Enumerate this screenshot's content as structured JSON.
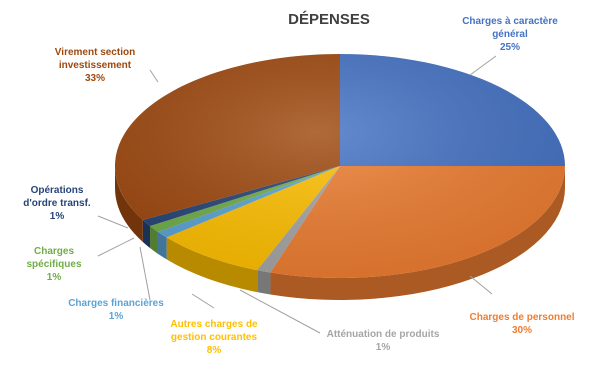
{
  "chart_data": {
    "type": "pie",
    "title": "DÉPENSES",
    "slices": [
      {
        "label_lines": [
          "Charges à caractère",
          "général"
        ],
        "pct_label": "25%",
        "value": 25,
        "color": "#4472C4"
      },
      {
        "label_lines": [
          "Charges de personnel"
        ],
        "pct_label": "30%",
        "value": 30,
        "color": "#ED7D31"
      },
      {
        "label_lines": [
          "Atténuation de produits"
        ],
        "pct_label": "1%",
        "value": 1,
        "color": "#A5A5A5"
      },
      {
        "label_lines": [
          "Autres charges de",
          "gestion courantes"
        ],
        "pct_label": "8%",
        "value": 8,
        "color": "#FFC000"
      },
      {
        "label_lines": [
          "Charges financières"
        ],
        "pct_label": "1%",
        "value": 1,
        "color": "#5BA3D6"
      },
      {
        "label_lines": [
          "Charges",
          "spécifiques"
        ],
        "pct_label": "1%",
        "value": 1,
        "color": "#70AD47"
      },
      {
        "label_lines": [
          "Opérations",
          "d'ordre transf."
        ],
        "pct_label": "1%",
        "value": 1,
        "color": "#264478"
      },
      {
        "label_lines": [
          "Virement section",
          "investissement"
        ],
        "pct_label": "33%",
        "value": 33,
        "color": "#9E480E"
      }
    ]
  }
}
